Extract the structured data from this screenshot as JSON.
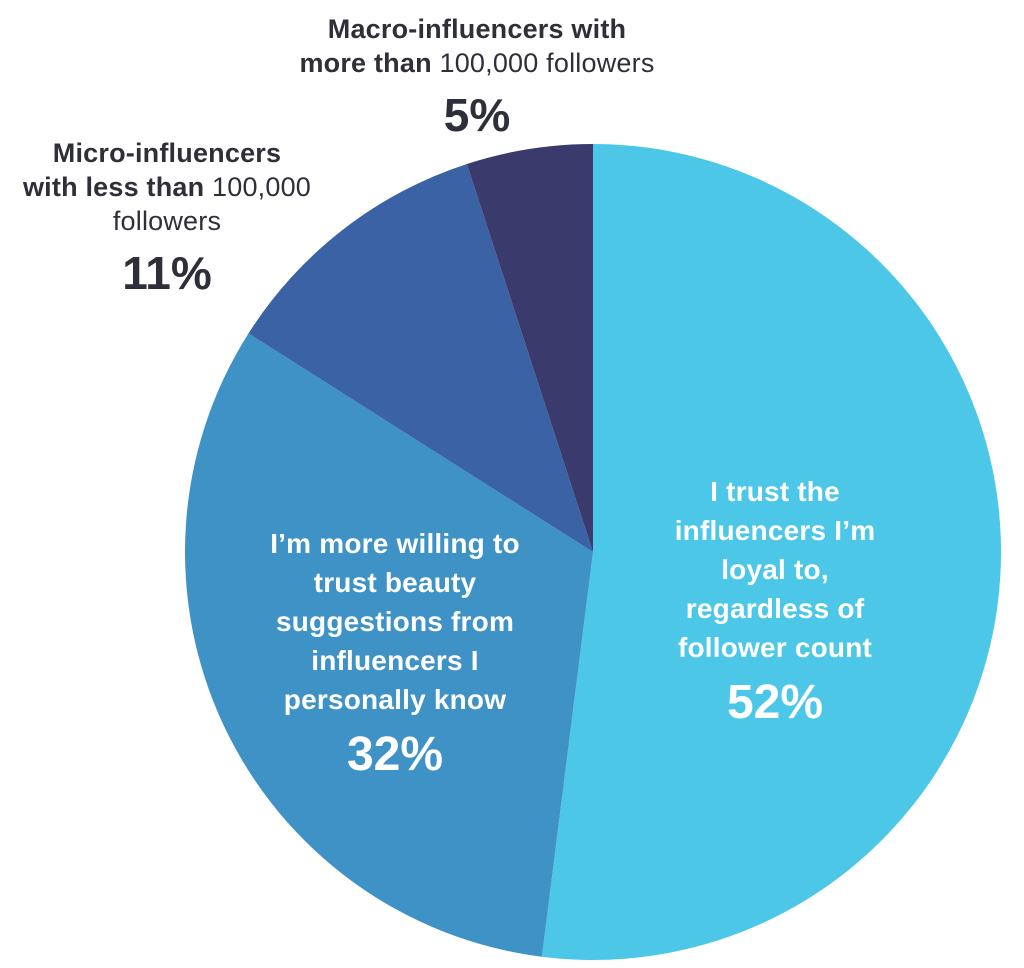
{
  "page": {
    "background_color": "#ffffff",
    "text_color": "#2e2f38"
  },
  "chart_data": {
    "type": "pie",
    "start_angle_deg": -90,
    "direction": "clockwise",
    "legend_position": "none",
    "slices": [
      {
        "name": "loyal-regardless-of-follower-count",
        "value": 52,
        "percent_label": "52%",
        "color": "#4dc7e8",
        "label_placement": "inside",
        "label_text_color": "#ffffff",
        "label_lines": [
          "I trust the",
          "influencers I’m",
          "loyal to,",
          "regardless of",
          "follower count"
        ]
      },
      {
        "name": "influencers-i-personally-know",
        "value": 32,
        "percent_label": "32%",
        "color": "#3e92c6",
        "label_placement": "inside",
        "label_text_color": "#ffffff",
        "label_lines": [
          "I’m more willing to",
          "trust beauty",
          "suggestions from",
          "influencers I",
          "personally know"
        ]
      },
      {
        "name": "micro-influencers-less-than-100000",
        "value": 11,
        "percent_label": "11%",
        "color": "#3a62a4",
        "label_placement": "outside",
        "label_text_color": "#2e2f38",
        "label_segments": [
          [
            {
              "text": "Micro-influencers",
              "bold": true
            }
          ],
          [
            {
              "text": "with ",
              "bold": true
            },
            {
              "text": "less than",
              "bold": true
            },
            {
              "text": " 100,000",
              "bold": false
            }
          ],
          [
            {
              "text": "followers",
              "bold": false
            }
          ]
        ]
      },
      {
        "name": "macro-influencers-more-than-100000",
        "value": 5,
        "percent_label": "5%",
        "color": "#3b3a6c",
        "label_placement": "outside",
        "label_text_color": "#2e2f38",
        "label_segments": [
          [
            {
              "text": "Macro-influencers with",
              "bold": true
            }
          ],
          [
            {
              "text": "more than",
              "bold": true
            },
            {
              "text": " 100,000 followers",
              "bold": false
            }
          ]
        ]
      }
    ]
  }
}
